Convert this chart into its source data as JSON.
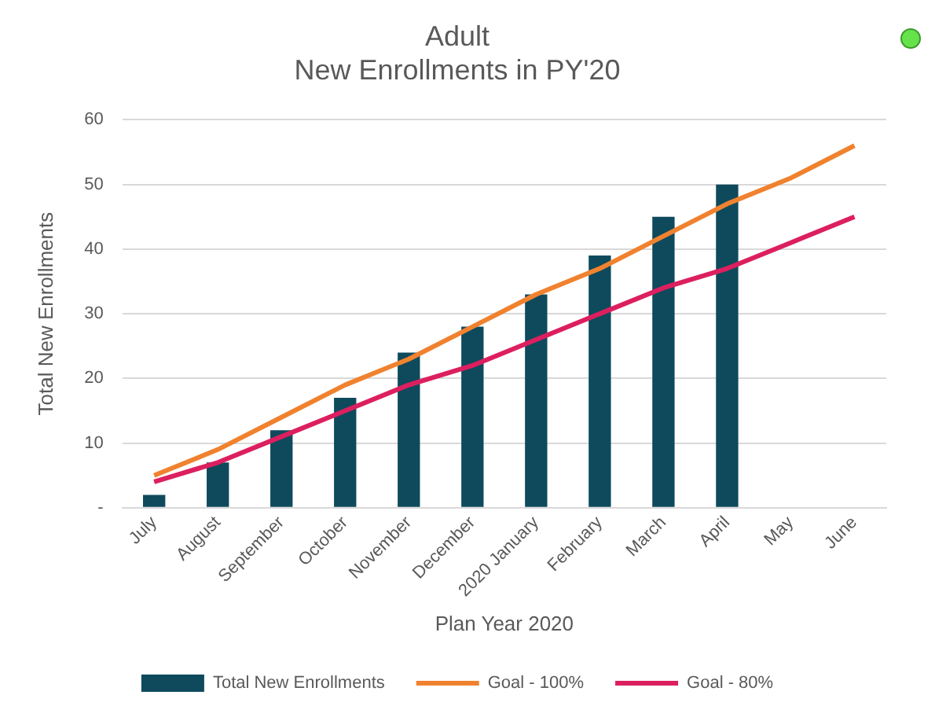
{
  "chart_data": {
    "type": "bar",
    "title": "Adult\nNew Enrollments in PY'20",
    "xlabel": "Plan Year 2020",
    "ylabel": "Total New Enrollments",
    "categories": [
      "July",
      "August",
      "September",
      "October",
      "November",
      "December",
      "2020 January",
      "February",
      "March",
      "April",
      "May",
      "June"
    ],
    "series": [
      {
        "name": "Total New Enrollments",
        "color": "#0e4a5c",
        "values": [
          2,
          7,
          12,
          17,
          24,
          28,
          33,
          39,
          45,
          50,
          null,
          null
        ]
      },
      {
        "name": "Goal - 100%",
        "type": "line",
        "color": "#f0822f",
        "values": [
          5,
          9,
          14,
          19,
          23,
          28,
          33,
          37,
          42,
          47,
          51,
          56
        ]
      },
      {
        "name": "Goal - 80%",
        "type": "line",
        "color": "#dc1f5f",
        "values": [
          4,
          7,
          11,
          15,
          19,
          22,
          26,
          30,
          34,
          37,
          41,
          45
        ]
      }
    ],
    "ylim": [
      0,
      60
    ],
    "yticks": [
      {
        "value": 0,
        "label": "-"
      },
      10,
      20,
      30,
      40,
      50,
      60
    ],
    "grid": "y",
    "legend": "bottom",
    "marker": "none",
    "line_style": "solid"
  }
}
